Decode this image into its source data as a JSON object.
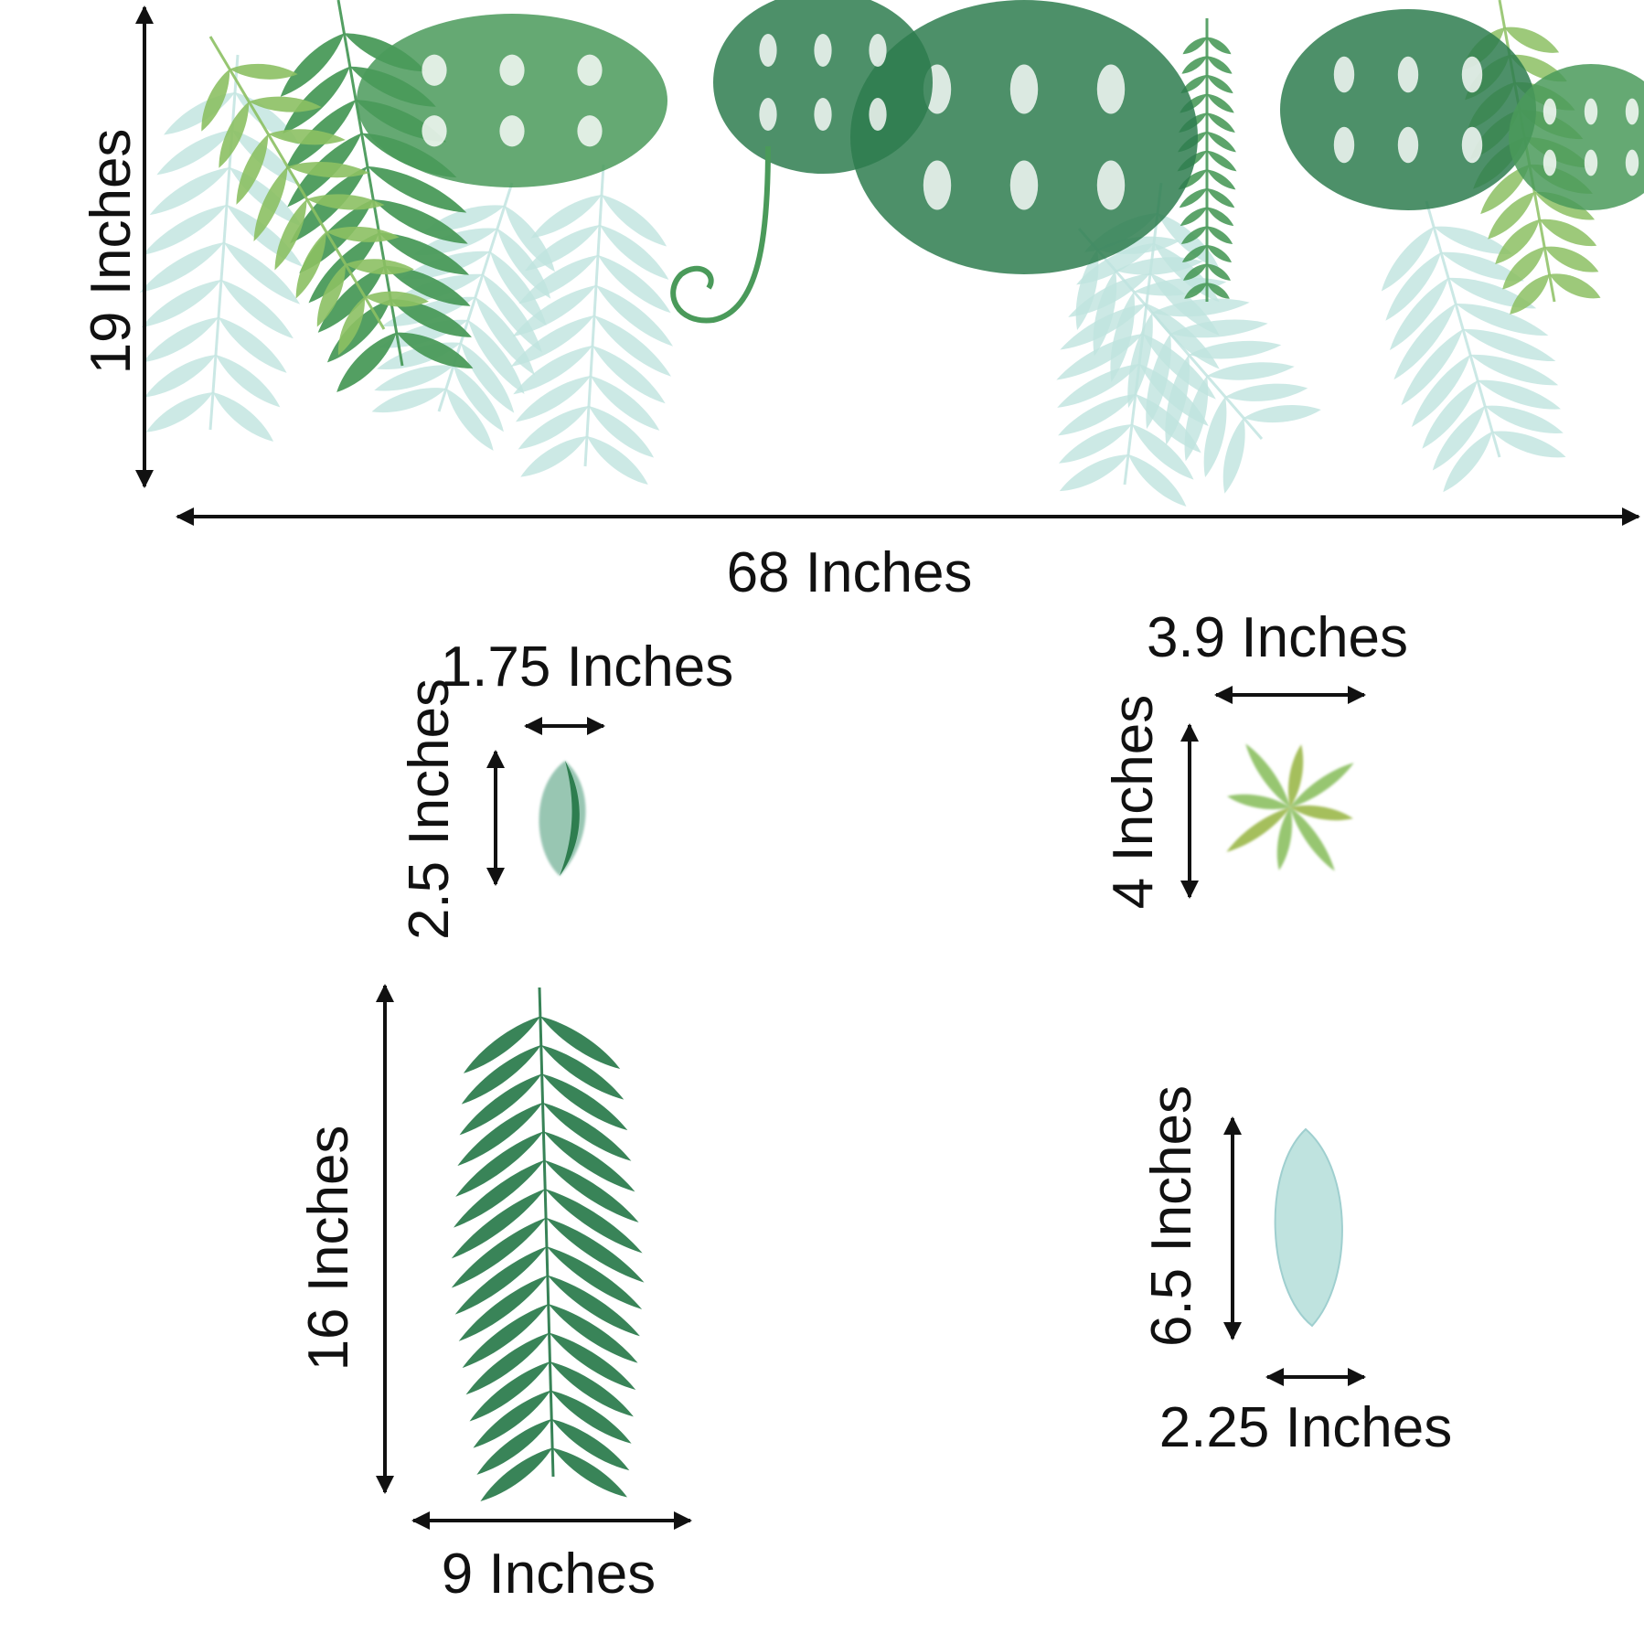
{
  "main_decal": {
    "height_label": "19 Inches",
    "width_label": "68 Inches"
  },
  "pieces": [
    {
      "name": "small-leaf",
      "width_label": "1.75 Inches",
      "height_label": "2.5 Inches"
    },
    {
      "name": "star-leaf",
      "width_label": "3.9 Inches",
      "height_label": "4 Inches"
    },
    {
      "name": "palm-frond",
      "width_label": "9 Inches",
      "height_label": "16 Inches"
    },
    {
      "name": "feather-leaf",
      "width_label": "2.25 Inches",
      "height_label": "6.5 Inches"
    }
  ],
  "colors": {
    "dark_green": "#2e7d4f",
    "mid_green": "#4a9a5a",
    "light_green": "#8cc063",
    "pale_teal": "#bfe3df",
    "arrow": "#111111"
  }
}
